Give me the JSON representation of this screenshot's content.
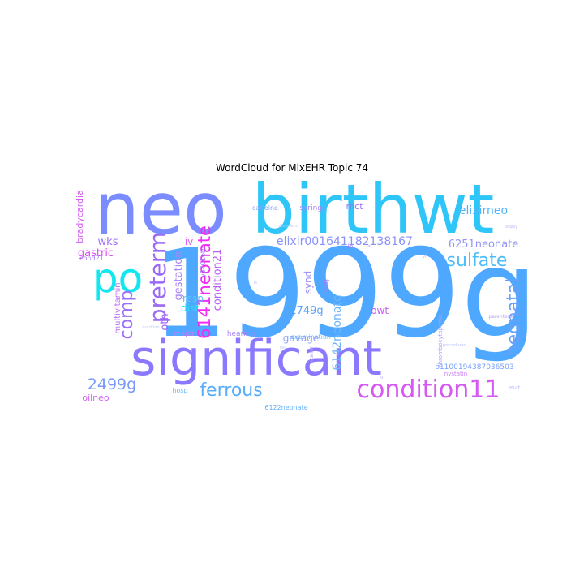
{
  "title": "WordCloud for MixEHR Topic 74",
  "words": [
    {
      "text": "1999g",
      "color": "#4fa8ff"
    },
    {
      "text": "birthwt",
      "color": "#2ec5f8"
    },
    {
      "text": "neo",
      "color": "#7a8cff"
    },
    {
      "text": "significant",
      "color": "#8a78ff"
    },
    {
      "text": "po",
      "color": "#12e6ee"
    },
    {
      "text": "condition11",
      "color": "#d558f2"
    },
    {
      "text": "ferrous",
      "color": "#58acfa"
    },
    {
      "text": "preterm",
      "color": "#9a6af6"
    },
    {
      "text": "6141neonate",
      "color": "#f02cf6"
    },
    {
      "text": "sulfate",
      "color": "#4cbcfb"
    },
    {
      "text": "neonatal",
      "color": "#68a0fa"
    },
    {
      "text": "comp",
      "color": "#9a70f8"
    },
    {
      "text": "2499g",
      "color": "#7a9af8"
    },
    {
      "text": "elixirneo",
      "color": "#52b4fa"
    },
    {
      "text": "elixir001641182138167",
      "color": "#8a90fa"
    },
    {
      "text": "6251neonate",
      "color": "#9494f8"
    },
    {
      "text": "condition21",
      "color": "#b860f4"
    },
    {
      "text": "1749g",
      "color": "#5ca2fa"
    },
    {
      "text": "6142neonate",
      "color": "#6cb6fa"
    },
    {
      "text": "gastric",
      "color": "#d84ef4"
    },
    {
      "text": "wks",
      "color": "#a070f8"
    },
    {
      "text": "gestation",
      "color": "#a884f8"
    },
    {
      "text": "oth",
      "color": "#a062f4"
    },
    {
      "text": "iv",
      "color": "#d860f4"
    },
    {
      "text": "resp",
      "color": "#5cc2f8"
    },
    {
      "text": "dist",
      "color": "#28e0f2"
    },
    {
      "text": "bradycardia",
      "color": "#d45cf2"
    },
    {
      "text": "synd",
      "color": "#9a90fa"
    },
    {
      "text": "maj",
      "color": "#a080f8"
    },
    {
      "text": "mct",
      "color": "#a070f6"
    },
    {
      "text": "caffeine",
      "color": "#80a4fa"
    },
    {
      "text": "syringe",
      "color": "#a884f8"
    },
    {
      "text": "bwt",
      "color": "#c65cf4"
    },
    {
      "text": "gavage",
      "color": "#8aa4fa"
    },
    {
      "text": "o1100194387036503",
      "color": "#7aa2fa"
    },
    {
      "text": "oilneo",
      "color": "#d060f4"
    },
    {
      "text": "hosp",
      "color": "#70b8fa"
    },
    {
      "text": "6122neonate",
      "color": "#64b2fa"
    },
    {
      "text": "multivitamin",
      "color": "#c070f6"
    },
    {
      "text": "major",
      "color": "#c080f6"
    },
    {
      "text": "hearing",
      "color": "#a884f8"
    },
    {
      "text": "examination",
      "color": "#70b8fa"
    },
    {
      "text": "v3401oth",
      "color": "#a070f6"
    },
    {
      "text": "cond21",
      "color": "#a884f8"
    },
    {
      "text": "thrombocytopenia",
      "color": "#a8a4f8"
    },
    {
      "text": "nystatin",
      "color": "#c880f6"
    },
    {
      "text": "parenteral",
      "color": "#b8a8fa"
    },
    {
      "text": "vitamin",
      "color": "#b8a0fa"
    },
    {
      "text": "mult",
      "color": "#a0a8fa"
    },
    {
      "text": "lb",
      "color": "#a070f6"
    },
    {
      "text": "disorders",
      "color": "#b8c4fc"
    },
    {
      "text": "biopsy",
      "color": "#c8b4fa"
    },
    {
      "text": "nutrition",
      "color": "#b8c8fc"
    },
    {
      "text": "procedures",
      "color": "#b8c0fc"
    },
    {
      "text": "dsc",
      "color": "#c0c8fc"
    },
    {
      "text": "fat",
      "color": "#c0b4fa"
    },
    {
      "text": "vi",
      "color": "#c0b0fa"
    },
    {
      "text": "lg",
      "color": "#c0b0fa"
    },
    {
      "text": "ls",
      "color": "#c0c0fc"
    }
  ]
}
